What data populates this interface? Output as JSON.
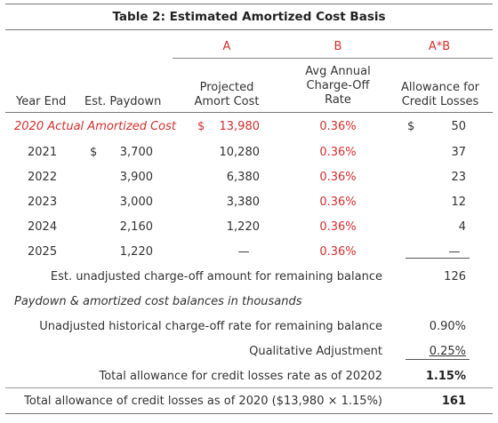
{
  "title": "Table 2: Estimated Amortized Cost Basis",
  "colors": {
    "accent": "#d32f2f",
    "text": "#333333",
    "rule": "#555555"
  },
  "col_letters": {
    "a": "A",
    "b": "B",
    "ab": "A*B"
  },
  "headers": {
    "year_end": "Year End",
    "paydown": "Est. Paydown",
    "projected_line1": "Projected",
    "projected_line2": "Amort Cost",
    "rate_line1": "Avg Annual",
    "rate_line2": "Charge-Off",
    "rate_line3": "Rate",
    "allowance_line1": "Allowance for",
    "allowance_line2": "Credit Losses"
  },
  "actual_row": {
    "label": "2020 Actual Amortized Cost",
    "amort_currency": "$",
    "amort_cost": "13,980",
    "rate": "0.36%",
    "allow_currency": "$",
    "allowance": "50"
  },
  "rows": [
    {
      "year": "2021",
      "paydown_currency": "$",
      "paydown": "3,700",
      "amort_cost": "10,280",
      "rate": "0.36%",
      "allowance": "37"
    },
    {
      "year": "2022",
      "paydown_currency": "",
      "paydown": "3,900",
      "amort_cost": "6,380",
      "rate": "0.36%",
      "allowance": "23"
    },
    {
      "year": "2023",
      "paydown_currency": "",
      "paydown": "3,000",
      "amort_cost": "3,380",
      "rate": "0.36%",
      "allowance": "12"
    },
    {
      "year": "2024",
      "paydown_currency": "",
      "paydown": "2,160",
      "amort_cost": "1,220",
      "rate": "0.36%",
      "allowance": "4"
    },
    {
      "year": "2025",
      "paydown_currency": "",
      "paydown": "1,220",
      "amort_cost": "—",
      "rate": "0.36%",
      "allowance": "—"
    }
  ],
  "summary": {
    "unadjusted_amount_label": "Est. unadjusted charge-off amount for remaining balance",
    "unadjusted_amount_value": "126",
    "note": "Paydown & amortized cost balances in thousands",
    "hist_rate_label": "Unadjusted historical charge-off rate for remaining balance",
    "hist_rate_value": "0.90%",
    "qual_label": "Qualitative Adjustment",
    "qual_value": "0.25%",
    "total_rate_label": "Total allowance for credit losses rate as of 20202",
    "total_rate_value": "1.15%",
    "total_allow_label": "Total allowance of credit losses as of 2020 ($13,980 × 1.15%)",
    "total_allow_value": "161"
  }
}
